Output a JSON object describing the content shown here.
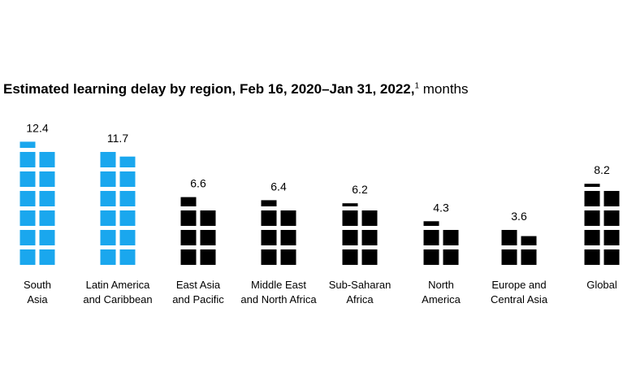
{
  "chart_data": {
    "type": "bar",
    "title": "Estimated learning delay by region, Feb 16, 2020–Jan 31, 2022,",
    "title_footnote": "1",
    "unit": "months",
    "categories": [
      [
        "South",
        "Asia"
      ],
      [
        "Latin America",
        "and Caribbean"
      ],
      [
        "East Asia",
        "and Pacific"
      ],
      [
        "Middle East",
        "and North Africa"
      ],
      [
        "Sub-Saharan",
        "Africa"
      ],
      [
        "North",
        "America"
      ],
      [
        "Europe and",
        "Central Asia"
      ],
      [
        "Global"
      ]
    ],
    "values": [
      12.4,
      11.7,
      6.6,
      6.4,
      6.2,
      4.3,
      3.6,
      8.2
    ],
    "value_labels": [
      "12.4",
      "11.7",
      "6.6",
      "6.4",
      "6.2",
      "4.3",
      "3.6",
      "8.2"
    ],
    "highlight": [
      true,
      true,
      false,
      false,
      false,
      false,
      false,
      false
    ],
    "colors": {
      "highlight": "#1aa7ee",
      "default": "#000000"
    },
    "unit_per_square": 1
  }
}
